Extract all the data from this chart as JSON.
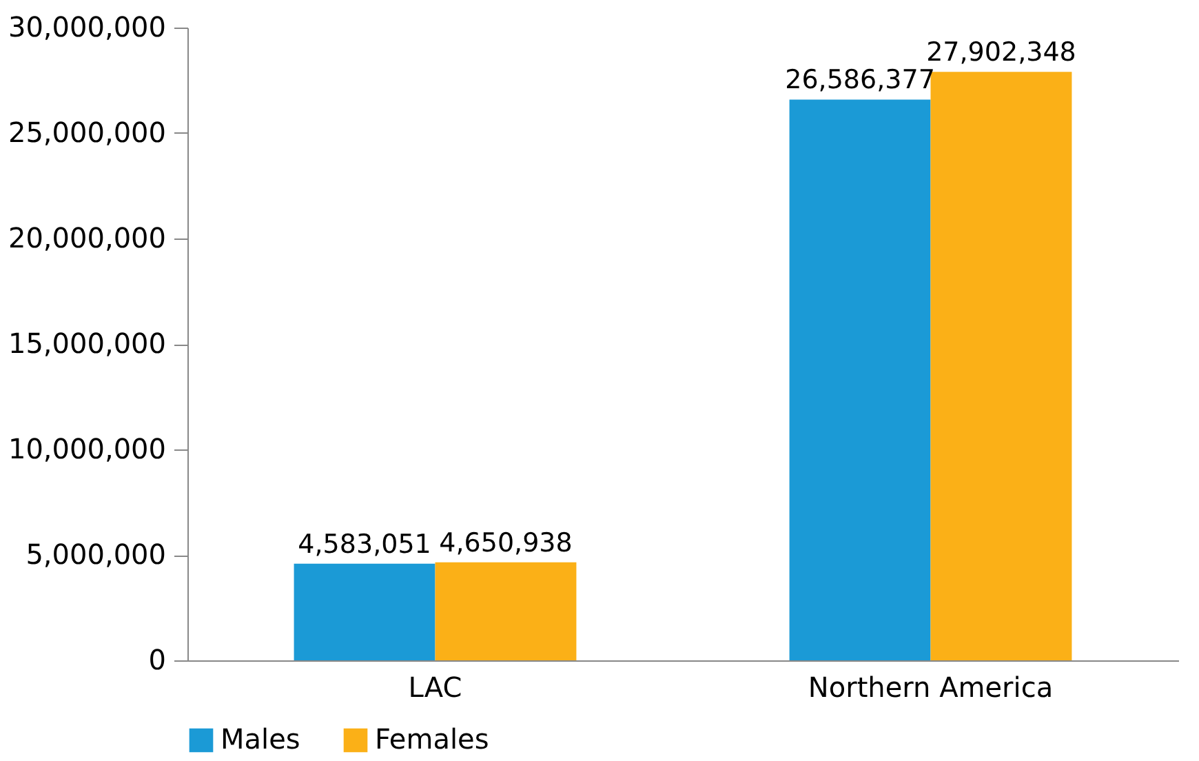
{
  "chart_data": {
    "type": "bar",
    "categories": [
      "LAC",
      "Northern America"
    ],
    "series": [
      {
        "name": "Males",
        "color": "#1b9ad6",
        "values": [
          4583051,
          26586377
        ],
        "value_labels": [
          "4,583,051",
          "26,586,377"
        ]
      },
      {
        "name": "Females",
        "color": "#fbb017",
        "values": [
          4650938,
          27902348
        ],
        "value_labels": [
          "4,650,938",
          "27,902,348"
        ]
      }
    ],
    "ylim": [
      0,
      30000000
    ],
    "yticks": [
      {
        "value": 0,
        "label": "0"
      },
      {
        "value": 5000000,
        "label": "5,000,000"
      },
      {
        "value": 10000000,
        "label": "10,000,000"
      },
      {
        "value": 15000000,
        "label": "15,000,000"
      },
      {
        "value": 20000000,
        "label": "20,000,000"
      },
      {
        "value": 25000000,
        "label": "25,000,000"
      },
      {
        "value": 30000000,
        "label": "30,000,000"
      }
    ],
    "grid": false,
    "legend": "bottom"
  }
}
